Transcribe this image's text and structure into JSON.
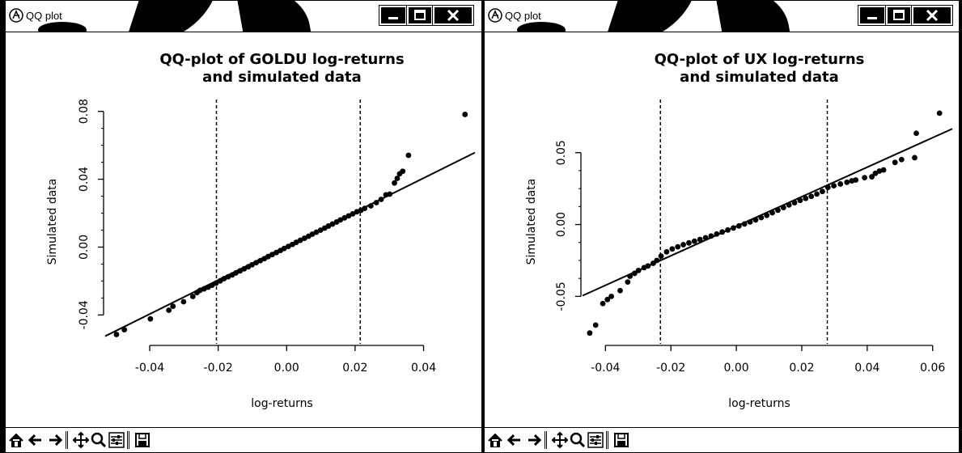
{
  "windows": [
    {
      "title": "QQ plot",
      "chart_data": {
        "type": "scatter",
        "title": "QQ-plot of GOLDU log-returns\nand simulated data",
        "xlabel": "log-returns",
        "ylabel": "Simulated data",
        "xlim": [
          -0.053,
          0.055
        ],
        "ylim": [
          -0.057,
          0.087
        ],
        "xticks": [
          "-0.04",
          "-0.02",
          "0.00",
          "0.02",
          "0.04"
        ],
        "xtick_values": [
          -0.04,
          -0.02,
          0.0,
          0.02,
          0.04
        ],
        "yticks": [
          "-0.04",
          "0.00",
          "0.04",
          "0.08"
        ],
        "ytick_values": [
          -0.04,
          0.0,
          0.04,
          0.08
        ],
        "vlines": [
          -0.0205,
          0.0215
        ],
        "fit_line": [
          [
            -0.053,
            -0.0525
          ],
          [
            0.055,
            0.0557
          ]
        ],
        "points": [
          [
            -0.0497,
            -0.0515
          ],
          [
            -0.0474,
            -0.0487
          ],
          [
            -0.0398,
            -0.0423
          ],
          [
            -0.0344,
            -0.0372
          ],
          [
            -0.0332,
            -0.0349
          ],
          [
            -0.0301,
            -0.0322
          ],
          [
            -0.0274,
            -0.0291
          ],
          [
            -0.0262,
            -0.0268
          ],
          [
            -0.0253,
            -0.0255
          ],
          [
            -0.0241,
            -0.0246
          ],
          [
            -0.0229,
            -0.0236
          ],
          [
            -0.0218,
            -0.0225
          ],
          [
            -0.0206,
            -0.0212
          ],
          [
            -0.0194,
            -0.0199
          ],
          [
            -0.0183,
            -0.0186
          ],
          [
            -0.0171,
            -0.0175
          ],
          [
            -0.0159,
            -0.0164
          ],
          [
            -0.0148,
            -0.0152
          ],
          [
            -0.0136,
            -0.014
          ],
          [
            -0.0124,
            -0.0128
          ],
          [
            -0.0112,
            -0.0116
          ],
          [
            -0.0101,
            -0.0104
          ],
          [
            -0.0089,
            -0.0092
          ],
          [
            -0.0077,
            -0.008
          ],
          [
            -0.0065,
            -0.0068
          ],
          [
            -0.0054,
            -0.0056
          ],
          [
            -0.0042,
            -0.0044
          ],
          [
            -0.003,
            -0.0032
          ],
          [
            -0.0018,
            -0.002
          ],
          [
            -0.0007,
            -0.0008
          ],
          [
            0.0005,
            0.0004
          ],
          [
            0.0017,
            0.0016
          ],
          [
            0.0028,
            0.0028
          ],
          [
            0.004,
            0.004
          ],
          [
            0.0052,
            0.0052
          ],
          [
            0.0064,
            0.0064
          ],
          [
            0.0075,
            0.0076
          ],
          [
            0.0087,
            0.0088
          ],
          [
            0.0099,
            0.01
          ],
          [
            0.0111,
            0.0112
          ],
          [
            0.0122,
            0.0124
          ],
          [
            0.0134,
            0.0136
          ],
          [
            0.0146,
            0.0148
          ],
          [
            0.0157,
            0.016
          ],
          [
            0.0169,
            0.0172
          ],
          [
            0.0181,
            0.0184
          ],
          [
            0.0193,
            0.0196
          ],
          [
            0.0205,
            0.0208
          ],
          [
            0.0217,
            0.0217
          ],
          [
            0.0228,
            0.0228
          ],
          [
            0.0246,
            0.0243
          ],
          [
            0.0262,
            0.0262
          ],
          [
            0.0276,
            0.0281
          ],
          [
            0.029,
            0.0308
          ],
          [
            0.0301,
            0.0312
          ],
          [
            0.0315,
            0.0378
          ],
          [
            0.0323,
            0.0405
          ],
          [
            0.033,
            0.0432
          ],
          [
            0.0339,
            0.0447
          ],
          [
            0.0356,
            0.0541
          ],
          [
            0.0521,
            0.0782
          ]
        ]
      }
    },
    {
      "title": "QQ plot",
      "chart_data": {
        "type": "scatter",
        "title": "QQ-plot of UX log-returns\nand simulated data",
        "xlabel": "log-returns",
        "ylabel": "Simulated data",
        "xlim": [
          -0.047,
          0.066
        ],
        "ylim": [
          -0.083,
          0.087
        ],
        "xticks": [
          "-0.04",
          "-0.02",
          "0.00",
          "0.02",
          "0.04",
          "0.06"
        ],
        "xtick_values": [
          -0.04,
          -0.02,
          0.0,
          0.02,
          0.04,
          0.06
        ],
        "yticks": [
          "-0.05",
          "0.00",
          "0.05"
        ],
        "ytick_values": [
          -0.05,
          0.0,
          0.05
        ],
        "vlines": [
          -0.0232,
          0.0278
        ],
        "fit_line": [
          [
            -0.047,
            -0.0495
          ],
          [
            0.066,
            0.0666
          ]
        ],
        "points": [
          [
            -0.0448,
            -0.0755
          ],
          [
            -0.043,
            -0.07
          ],
          [
            -0.0408,
            -0.055
          ],
          [
            -0.0394,
            -0.0522
          ],
          [
            -0.0382,
            -0.05
          ],
          [
            -0.0355,
            -0.046
          ],
          [
            -0.0332,
            -0.04
          ],
          [
            -0.0325,
            -0.036
          ],
          [
            -0.0311,
            -0.034
          ],
          [
            -0.0299,
            -0.032
          ],
          [
            -0.0282,
            -0.03
          ],
          [
            -0.027,
            -0.0288
          ],
          [
            -0.0254,
            -0.027
          ],
          [
            -0.0243,
            -0.025
          ],
          [
            -0.023,
            -0.022
          ],
          [
            -0.0213,
            -0.019
          ],
          [
            -0.0196,
            -0.017
          ],
          [
            -0.0179,
            -0.0155
          ],
          [
            -0.0162,
            -0.014
          ],
          [
            -0.0145,
            -0.0128
          ],
          [
            -0.0128,
            -0.0116
          ],
          [
            -0.0111,
            -0.0104
          ],
          [
            -0.0094,
            -0.0092
          ],
          [
            -0.0077,
            -0.008
          ],
          [
            -0.006,
            -0.0066
          ],
          [
            -0.0043,
            -0.0052
          ],
          [
            -0.0026,
            -0.0038
          ],
          [
            -0.0009,
            -0.0024
          ],
          [
            0.0008,
            -0.001
          ],
          [
            0.0025,
            0.0004
          ],
          [
            0.0042,
            0.0018
          ],
          [
            0.0059,
            0.0032
          ],
          [
            0.0076,
            0.0048
          ],
          [
            0.0093,
            0.0064
          ],
          [
            0.011,
            0.0082
          ],
          [
            0.0127,
            0.01
          ],
          [
            0.0144,
            0.0118
          ],
          [
            0.0161,
            0.0136
          ],
          [
            0.0178,
            0.0152
          ],
          [
            0.0195,
            0.0168
          ],
          [
            0.0212,
            0.0182
          ],
          [
            0.0229,
            0.0196
          ],
          [
            0.0246,
            0.0212
          ],
          [
            0.0263,
            0.023
          ],
          [
            0.028,
            0.0258
          ],
          [
            0.0298,
            0.027
          ],
          [
            0.0318,
            0.0282
          ],
          [
            0.0338,
            0.0294
          ],
          [
            0.0353,
            0.0304
          ],
          [
            0.0365,
            0.031
          ],
          [
            0.0392,
            0.0326
          ],
          [
            0.0414,
            0.0332
          ],
          [
            0.0425,
            0.0356
          ],
          [
            0.0437,
            0.0372
          ],
          [
            0.045,
            0.038
          ],
          [
            0.0485,
            0.0432
          ],
          [
            0.0505,
            0.0452
          ],
          [
            0.0545,
            0.0465
          ],
          [
            0.055,
            0.0635
          ],
          [
            0.0621,
            0.0775
          ]
        ]
      }
    }
  ]
}
